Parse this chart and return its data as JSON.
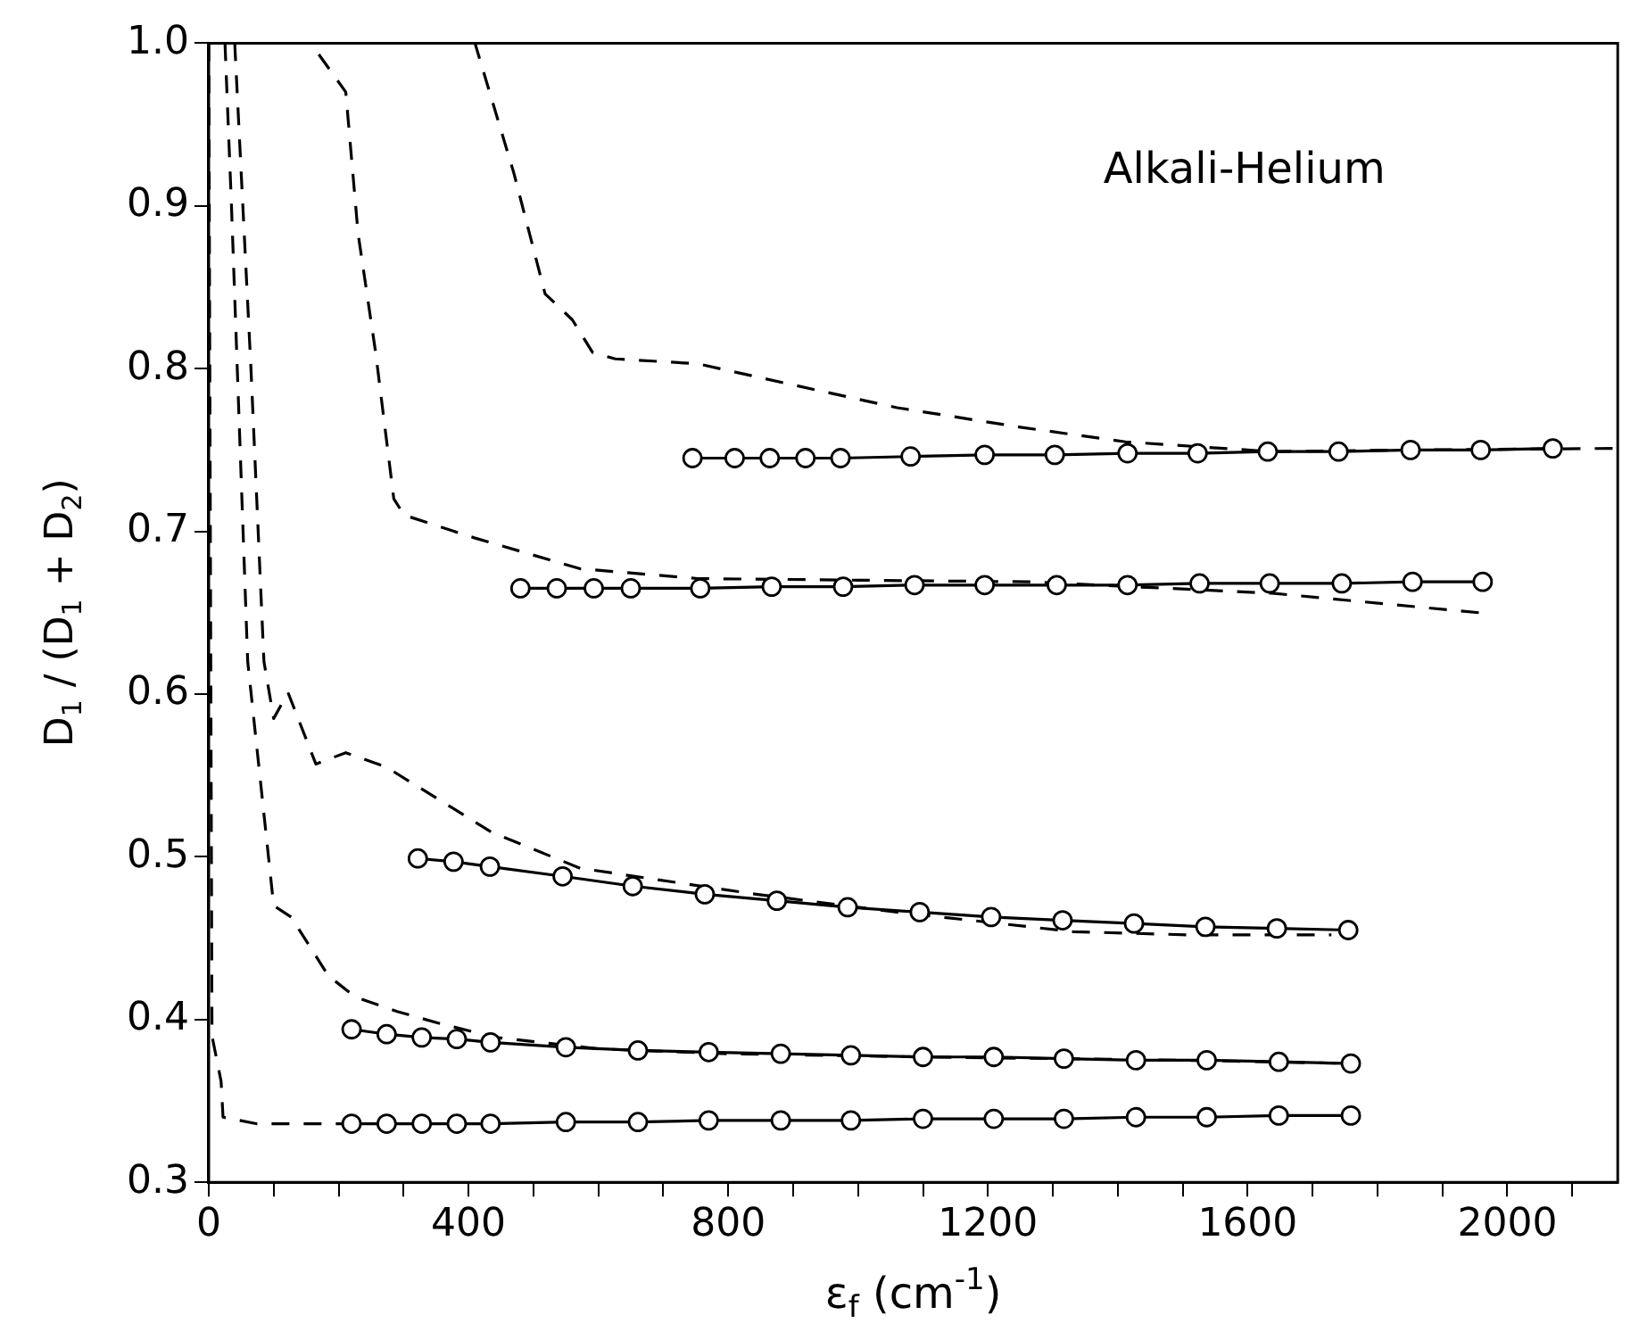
{
  "chart_data": {
    "type": "line",
    "xlabel": "ε$_{f}$ (cm$^{-1}$)",
    "ylabel": "D$_{1}$ / (D$_{1}$ + D$_{2}$)",
    "annotations": [
      "Alkali-Helium"
    ],
    "xlim": [
      0,
      2170
    ],
    "ylim": [
      0.3,
      1.0
    ],
    "xticks": [
      0,
      {
        "value": 100,
        "label": null
      },
      {
        "value": 200,
        "label": null
      },
      {
        "value": 300,
        "label": null
      },
      400,
      {
        "value": 500,
        "label": null
      },
      {
        "value": 600,
        "label": null
      },
      {
        "value": 700,
        "label": null
      },
      800,
      {
        "value": 900,
        "label": null
      },
      {
        "value": 1000,
        "label": null
      },
      {
        "value": 1100,
        "label": null
      },
      1200,
      {
        "value": 1300,
        "label": null
      },
      {
        "value": 1400,
        "label": null
      },
      {
        "value": 1500,
        "label": null
      },
      1600,
      {
        "value": 1700,
        "label": null
      },
      {
        "value": 1800,
        "label": null
      },
      {
        "value": 1900,
        "label": null
      },
      2000,
      {
        "value": 2100,
        "label": null
      }
    ],
    "yticks": [
      0.3,
      0.4,
      0.5,
      0.6,
      0.7,
      0.8,
      0.9,
      {
        "value": 1.0,
        "label": "1.0"
      }
    ],
    "grid": false,
    "legend": false,
    "series": [
      {
        "color": "#000000",
        "marker": "circle",
        "line_style": "solid",
        "x": [
          745,
          810,
          864,
          919,
          973,
          1081,
          1195,
          1303,
          1415,
          1523,
          1631,
          1740,
          1851,
          1959,
          2070
        ],
        "values": [
          0.745,
          0.745,
          0.745,
          0.745,
          0.745,
          0.746,
          0.747,
          0.747,
          0.748,
          0.748,
          0.749,
          0.749,
          0.75,
          0.75,
          0.751
        ]
      },
      {
        "color": "#000000",
        "marker": "circle",
        "line_style": "solid",
        "x": [
          480,
          536,
          593,
          650,
          757,
          867,
          977,
          1087,
          1195,
          1306,
          1415,
          1526,
          1634,
          1745,
          1854,
          1962
        ],
        "values": [
          0.665,
          0.665,
          0.665,
          0.665,
          0.665,
          0.666,
          0.666,
          0.667,
          0.667,
          0.667,
          0.667,
          0.668,
          0.668,
          0.668,
          0.669,
          0.669
        ]
      },
      {
        "color": "#000000",
        "marker": "circle",
        "line_style": "solid",
        "x": [
          322,
          377,
          433,
          545,
          653,
          764,
          875,
          984,
          1095,
          1205,
          1315,
          1425,
          1535,
          1645,
          1755
        ],
        "values": [
          0.499,
          0.497,
          0.494,
          0.488,
          0.482,
          0.477,
          0.473,
          0.469,
          0.466,
          0.463,
          0.461,
          0.459,
          0.457,
          0.456,
          0.455
        ]
      },
      {
        "color": "#000000",
        "marker": "circle",
        "line_style": "solid",
        "x": [
          220,
          274,
          328,
          382,
          434,
          550,
          661,
          770,
          881,
          989,
          1100,
          1209,
          1317,
          1428,
          1537,
          1648,
          1759
        ],
        "values": [
          0.394,
          0.391,
          0.389,
          0.388,
          0.386,
          0.383,
          0.381,
          0.38,
          0.379,
          0.378,
          0.377,
          0.377,
          0.376,
          0.375,
          0.375,
          0.374,
          0.373
        ]
      },
      {
        "color": "#000000",
        "marker": "circle",
        "line_style": "solid",
        "x": [
          220,
          274,
          328,
          382,
          434,
          550,
          661,
          770,
          881,
          989,
          1100,
          1209,
          1317,
          1428,
          1537,
          1648,
          1759
        ],
        "values": [
          0.336,
          0.336,
          0.336,
          0.336,
          0.336,
          0.337,
          0.337,
          0.338,
          0.338,
          0.338,
          0.339,
          0.339,
          0.339,
          0.34,
          0.34,
          0.341,
          0.341
        ]
      },
      {
        "color": "#000000",
        "marker": "none",
        "line_style": "dashed",
        "x": [
          160,
          410,
          470,
          518,
          560,
          591,
          626,
          753,
          900,
          1060,
          1250,
          1412,
          1637,
          1850,
          2168
        ],
        "values": [
          1.0,
          1.0,
          0.92,
          0.846,
          0.83,
          0.81,
          0.806,
          0.803,
          0.79,
          0.776,
          0.764,
          0.755,
          0.749,
          0.75,
          0.751
        ]
      },
      {
        "color": "#000000",
        "marker": "none",
        "line_style": "dashed",
        "x": [
          30,
          157,
          211,
          230,
          257,
          285,
          301,
          409,
          572,
          753,
          1000,
          1263,
          1637,
          1957
        ],
        "values": [
          1.0,
          1.0,
          0.97,
          0.883,
          0.81,
          0.72,
          0.71,
          0.696,
          0.677,
          0.671,
          0.67,
          0.669,
          0.662,
          0.65
        ]
      },
      {
        "color": "#000000",
        "marker": "none",
        "line_style": "dashed",
        "x": [
          40,
          65,
          85,
          100,
          122,
          165,
          211,
          274,
          347,
          436,
          572,
          707,
          843,
          1060,
          1331,
          1512,
          1729
        ],
        "values": [
          1.0,
          0.8,
          0.62,
          0.585,
          0.601,
          0.557,
          0.564,
          0.555,
          0.537,
          0.515,
          0.493,
          0.485,
          0.477,
          0.466,
          0.454,
          0.452,
          0.452
        ]
      },
      {
        "color": "#000000",
        "marker": "none",
        "line_style": "dashed",
        "x": [
          25,
          35,
          60,
          100,
          127,
          157,
          184,
          225,
          290,
          352,
          442,
          600,
          800,
          1100,
          1500,
          1759
        ],
        "values": [
          1.0,
          0.9,
          0.62,
          0.47,
          0.463,
          0.444,
          0.427,
          0.414,
          0.405,
          0.398,
          0.389,
          0.382,
          0.379,
          0.377,
          0.375,
          0.373
        ]
      },
      {
        "color": "#000000",
        "marker": "none",
        "line_style": "dashed",
        "x": [
          0,
          5,
          19,
          22,
          73,
          220
        ],
        "values": [
          1.0,
          0.39,
          0.362,
          0.34,
          0.336,
          0.336
        ]
      }
    ]
  }
}
